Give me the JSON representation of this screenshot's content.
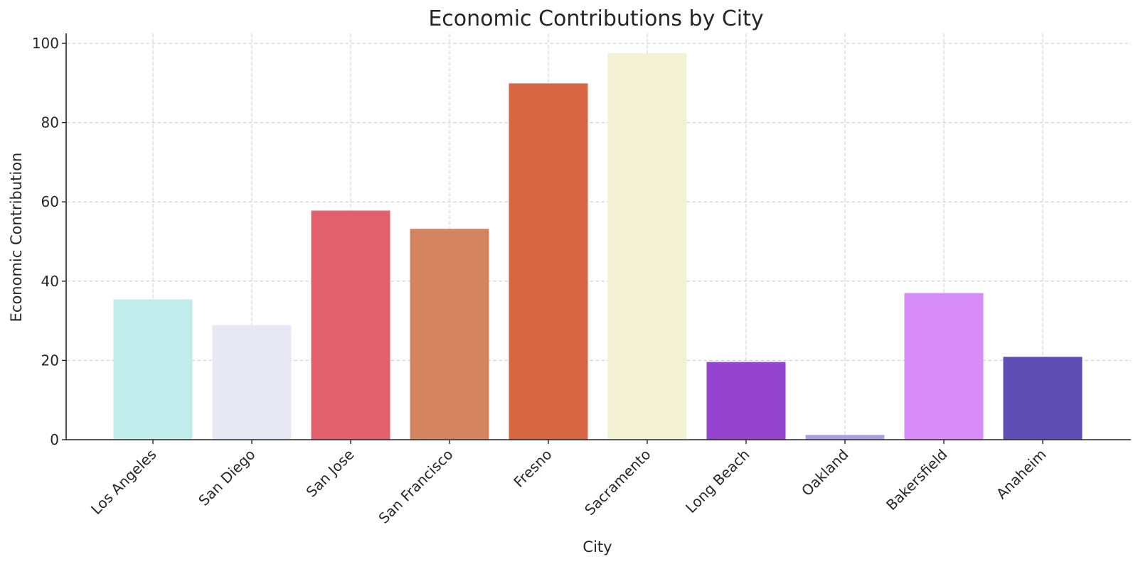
{
  "chart_data": {
    "type": "bar",
    "title": "Economic Contributions by City",
    "xlabel": "City",
    "ylabel": "Economic Contribution",
    "ylim": [
      0,
      100
    ],
    "yticks": [
      0,
      20,
      40,
      60,
      80,
      100
    ],
    "grid": true,
    "legend": null,
    "categories": [
      "Los Angeles",
      "San Diego",
      "San Jose",
      "San Francisco",
      "Fresno",
      "Sacramento",
      "Long Beach",
      "Oakland",
      "Bakersfield",
      "Anaheim"
    ],
    "values": [
      35.4,
      28.9,
      57.8,
      53.2,
      89.9,
      97.5,
      19.6,
      1.2,
      37.0,
      20.9
    ],
    "colors": [
      "#c0ecec",
      "#e8e8f5",
      "#e3616e",
      "#d4845f",
      "#d66742",
      "#f2f2d2",
      "#9444cf",
      "#aaa0e0",
      "#d88cf8",
      "#5e4db3"
    ]
  }
}
